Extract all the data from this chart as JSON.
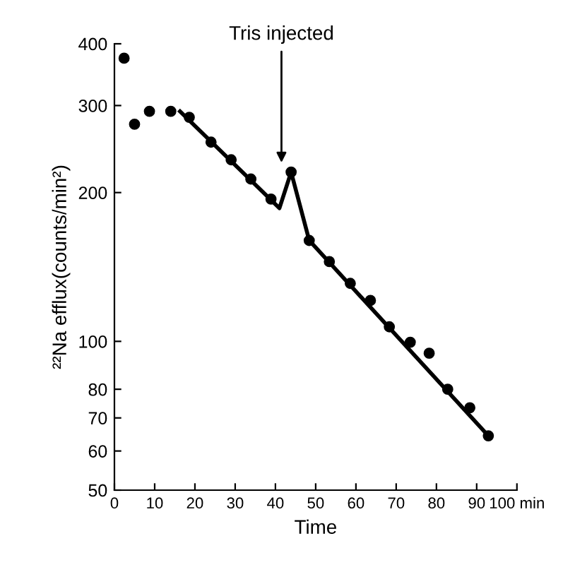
{
  "chart_data": {
    "type": "scatter",
    "xlabel": "Time",
    "ylabel": "²²Na efflux(counts/min²)",
    "x": [
      2.4,
      5,
      8.7,
      14,
      18.6,
      24,
      29,
      33.9,
      38.9,
      43.9,
      48.4,
      53.4,
      58.6,
      63.6,
      68.3,
      73.5,
      78.2,
      82.8,
      88.3,
      92.9
    ],
    "series": [
      {
        "color": "#000000",
        "marker": "circle",
        "values": [
          374,
          275,
          292,
          292,
          284,
          253,
          233,
          213,
          194,
          220,
          160,
          145,
          131,
          121,
          107,
          99.6,
          94.6,
          80,
          73.4,
          64.4
        ]
      },
      {
        "type": "line",
        "color": "#000000",
        "marker": "none",
        "line_style": "solid",
        "x": [
          16.3,
          41,
          43.9,
          48.4,
          92.9
        ],
        "values": [
          292,
          186,
          220,
          160,
          64.4
        ]
      }
    ],
    "log": "y",
    "xlim": [
      0,
      100
    ],
    "ylim": [
      50,
      400
    ],
    "xticks": [
      0,
      10,
      20,
      30,
      40,
      50,
      60,
      70,
      80,
      90,
      {
        "value": 100,
        "label": "100 min"
      }
    ],
    "yticks": [
      50,
      60,
      70,
      80,
      100,
      200,
      300,
      400
    ],
    "annotations": [
      "Tris injected"
    ],
    "grid": false,
    "legend": false
  }
}
